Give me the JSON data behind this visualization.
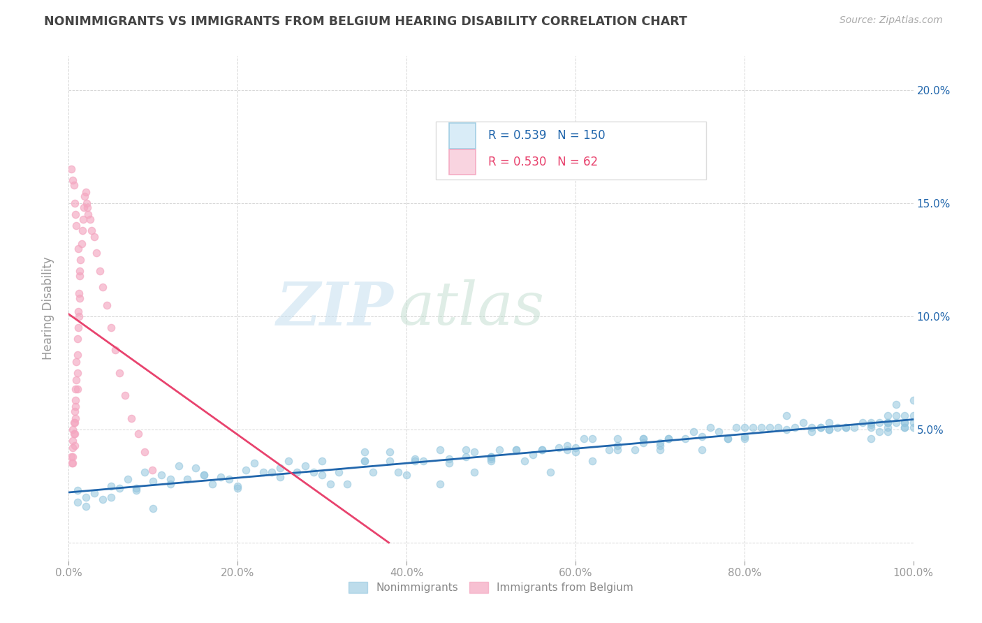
{
  "title": "NONIMMIGRANTS VS IMMIGRANTS FROM BELGIUM HEARING DISABILITY CORRELATION CHART",
  "source": "Source: ZipAtlas.com",
  "ylabel": "Hearing Disability",
  "watermark_zip": "ZIP",
  "watermark_atlas": "atlas",
  "xlim": [
    0.0,
    1.0
  ],
  "ylim": [
    -0.008,
    0.215
  ],
  "xtick_vals": [
    0.0,
    0.2,
    0.4,
    0.6,
    0.8,
    1.0
  ],
  "xtick_labels": [
    "0.0%",
    "20.0%",
    "40.0%",
    "60.0%",
    "80.0%",
    "100.0%"
  ],
  "ytick_vals_right": [
    0.05,
    0.1,
    0.15,
    0.2
  ],
  "ytick_labels_right": [
    "5.0%",
    "10.0%",
    "15.0%",
    "20.0%"
  ],
  "legend_nonimmigrants": {
    "R": 0.539,
    "N": 150
  },
  "legend_immigrants": {
    "R": 0.53,
    "N": 62
  },
  "nonimmigrant_color": "#92c5de",
  "immigrant_color": "#f4a6c0",
  "trendline_nonimmigrant_color": "#2166ac",
  "trendline_immigrant_color": "#e8436e",
  "background_color": "#ffffff",
  "grid_color": "#cccccc",
  "title_color": "#444444",
  "axis_color": "#999999",
  "right_tick_color": "#2166ac",
  "legend_text_ni_color": "#2166ac",
  "legend_text_im_color": "#e8436e",
  "ni_scatter_x": [
    0.01,
    0.01,
    0.02,
    0.03,
    0.04,
    0.05,
    0.06,
    0.07,
    0.08,
    0.09,
    0.1,
    0.11,
    0.12,
    0.13,
    0.14,
    0.15,
    0.16,
    0.17,
    0.18,
    0.19,
    0.2,
    0.21,
    0.22,
    0.24,
    0.25,
    0.27,
    0.28,
    0.3,
    0.31,
    0.33,
    0.35,
    0.36,
    0.38,
    0.39,
    0.41,
    0.42,
    0.44,
    0.45,
    0.47,
    0.48,
    0.5,
    0.51,
    0.53,
    0.54,
    0.56,
    0.57,
    0.59,
    0.61,
    0.62,
    0.64,
    0.65,
    0.67,
    0.68,
    0.7,
    0.71,
    0.73,
    0.75,
    0.76,
    0.78,
    0.79,
    0.81,
    0.82,
    0.84,
    0.85,
    0.87,
    0.88,
    0.89,
    0.9,
    0.91,
    0.92,
    0.93,
    0.94,
    0.95,
    0.95,
    0.96,
    0.96,
    0.97,
    0.97,
    0.97,
    0.98,
    0.98,
    0.98,
    0.99,
    0.99,
    0.99,
    0.99,
    1.0,
    1.0,
    1.0,
    1.0,
    0.23,
    0.26,
    0.29,
    0.32,
    0.35,
    0.38,
    0.41,
    0.44,
    0.47,
    0.5,
    0.53,
    0.56,
    0.59,
    0.62,
    0.65,
    0.68,
    0.71,
    0.74,
    0.77,
    0.8,
    0.83,
    0.86,
    0.89,
    0.92,
    0.95,
    0.97,
    0.99,
    0.4,
    0.5,
    0.6,
    0.3,
    0.2,
    0.1,
    0.7,
    0.8,
    0.9,
    0.45,
    0.55,
    0.65,
    0.75,
    0.85,
    0.95,
    0.02,
    0.05,
    0.08,
    0.12,
    0.16,
    0.25,
    0.35,
    0.48,
    0.58,
    0.68,
    0.78,
    0.88,
    0.97,
    0.5,
    0.6,
    0.7,
    0.8,
    0.9
  ],
  "ni_scatter_y": [
    0.023,
    0.018,
    0.02,
    0.022,
    0.019,
    0.025,
    0.024,
    0.028,
    0.023,
    0.031,
    0.027,
    0.03,
    0.026,
    0.034,
    0.028,
    0.033,
    0.03,
    0.026,
    0.029,
    0.028,
    0.024,
    0.032,
    0.035,
    0.031,
    0.029,
    0.031,
    0.034,
    0.036,
    0.026,
    0.026,
    0.04,
    0.031,
    0.04,
    0.031,
    0.037,
    0.036,
    0.026,
    0.037,
    0.041,
    0.031,
    0.036,
    0.041,
    0.041,
    0.036,
    0.041,
    0.031,
    0.041,
    0.046,
    0.036,
    0.041,
    0.046,
    0.041,
    0.046,
    0.041,
    0.046,
    0.046,
    0.041,
    0.051,
    0.046,
    0.051,
    0.051,
    0.051,
    0.051,
    0.056,
    0.053,
    0.051,
    0.051,
    0.053,
    0.051,
    0.051,
    0.051,
    0.053,
    0.053,
    0.046,
    0.053,
    0.049,
    0.056,
    0.053,
    0.049,
    0.061,
    0.056,
    0.053,
    0.053,
    0.056,
    0.053,
    0.051,
    0.063,
    0.056,
    0.053,
    0.051,
    0.031,
    0.036,
    0.031,
    0.031,
    0.036,
    0.036,
    0.036,
    0.041,
    0.038,
    0.038,
    0.041,
    0.041,
    0.043,
    0.046,
    0.041,
    0.046,
    0.046,
    0.049,
    0.049,
    0.051,
    0.051,
    0.051,
    0.051,
    0.051,
    0.051,
    0.053,
    0.051,
    0.03,
    0.038,
    0.042,
    0.03,
    0.025,
    0.015,
    0.044,
    0.047,
    0.05,
    0.035,
    0.039,
    0.043,
    0.047,
    0.05,
    0.052,
    0.016,
    0.02,
    0.024,
    0.028,
    0.03,
    0.033,
    0.036,
    0.04,
    0.042,
    0.044,
    0.046,
    0.049,
    0.051,
    0.037,
    0.04,
    0.043,
    0.046,
    0.05
  ],
  "im_scatter_x": [
    0.003,
    0.004,
    0.005,
    0.005,
    0.005,
    0.005,
    0.005,
    0.006,
    0.006,
    0.007,
    0.007,
    0.007,
    0.007,
    0.008,
    0.008,
    0.008,
    0.008,
    0.009,
    0.009,
    0.01,
    0.01,
    0.01,
    0.01,
    0.011,
    0.011,
    0.012,
    0.012,
    0.013,
    0.013,
    0.014,
    0.015,
    0.016,
    0.017,
    0.018,
    0.019,
    0.02,
    0.021,
    0.022,
    0.023,
    0.025,
    0.027,
    0.03,
    0.033,
    0.037,
    0.04,
    0.045,
    0.05,
    0.055,
    0.06,
    0.067,
    0.074,
    0.082,
    0.09,
    0.099,
    0.003,
    0.005,
    0.006,
    0.007,
    0.008,
    0.009,
    0.011,
    0.013
  ],
  "im_scatter_y": [
    0.038,
    0.035,
    0.042,
    0.038,
    0.045,
    0.05,
    0.035,
    0.048,
    0.053,
    0.048,
    0.058,
    0.053,
    0.043,
    0.06,
    0.068,
    0.063,
    0.055,
    0.072,
    0.08,
    0.075,
    0.068,
    0.09,
    0.083,
    0.095,
    0.102,
    0.11,
    0.1,
    0.118,
    0.108,
    0.125,
    0.132,
    0.138,
    0.143,
    0.148,
    0.153,
    0.155,
    0.15,
    0.148,
    0.145,
    0.143,
    0.138,
    0.135,
    0.128,
    0.12,
    0.113,
    0.105,
    0.095,
    0.085,
    0.075,
    0.065,
    0.055,
    0.048,
    0.04,
    0.032,
    0.165,
    0.16,
    0.158,
    0.15,
    0.145,
    0.14,
    0.13,
    0.12
  ]
}
